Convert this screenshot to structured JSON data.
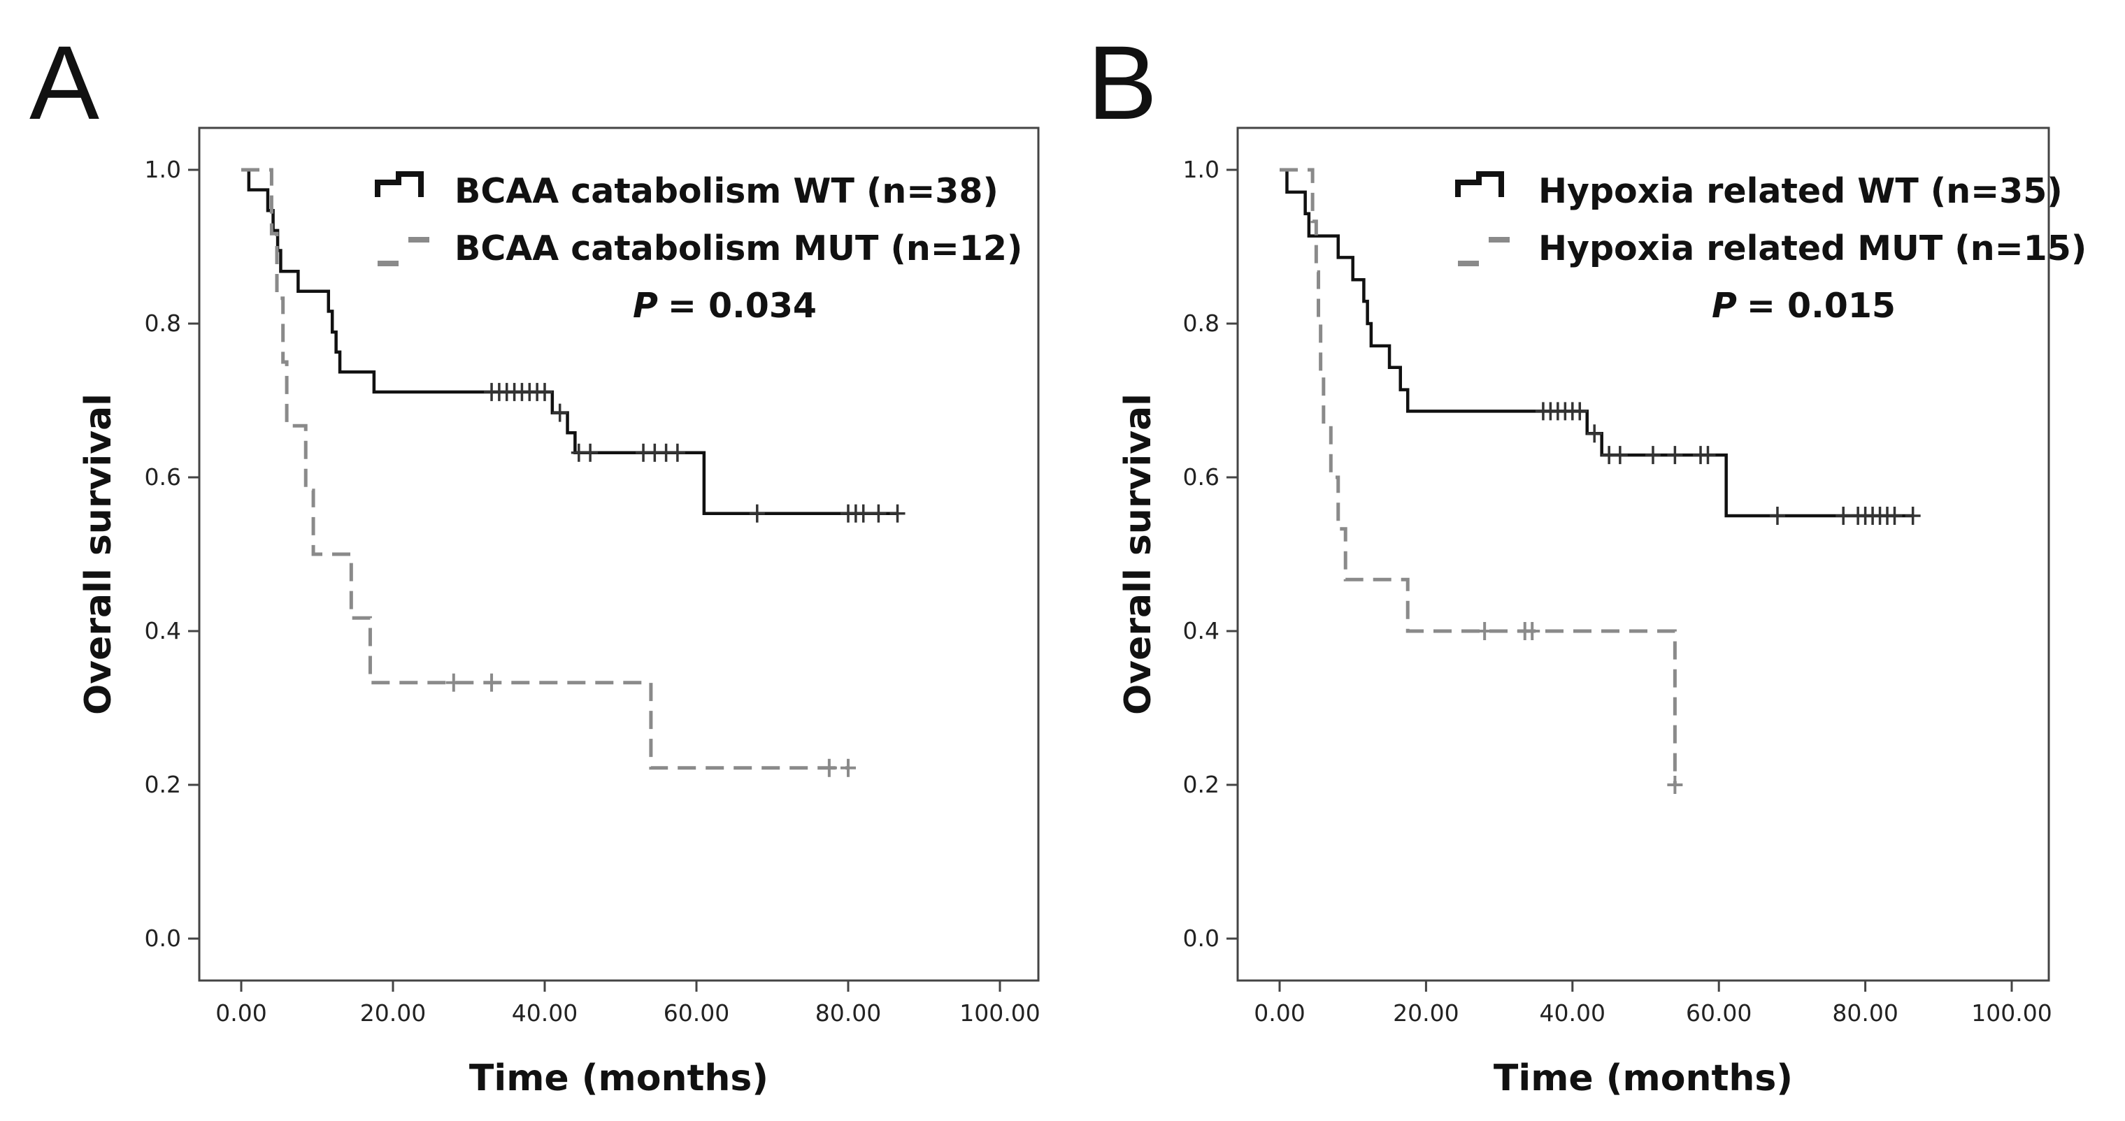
{
  "chart_data": [
    {
      "type": "line",
      "subtype": "kaplan-meier",
      "panel_label": "A",
      "xlabel": "Time (months)",
      "ylabel": "Overall survival",
      "xlim": [
        0,
        100
      ],
      "ylim": [
        0,
        1.0
      ],
      "xticks": [
        "0.00",
        "20.00",
        "40.00",
        "60.00",
        "80.00",
        "100.00"
      ],
      "yticks": [
        "0.0",
        "0.2",
        "0.4",
        "0.6",
        "0.8",
        "1.0"
      ],
      "legend_position": "top-right",
      "p_label": "P",
      "p_value": "= 0.034",
      "series": [
        {
          "name": "BCAA catabolism WT (n=38)",
          "style": "solid",
          "color": "#111111",
          "steps": [
            [
              0,
              1.0
            ],
            [
              1,
              0.974
            ],
            [
              3.5,
              0.947
            ],
            [
              4.2,
              0.921
            ],
            [
              4.8,
              0.895
            ],
            [
              5.2,
              0.868
            ],
            [
              7.5,
              0.842
            ],
            [
              11.5,
              0.816
            ],
            [
              12,
              0.789
            ],
            [
              12.5,
              0.763
            ],
            [
              13,
              0.737
            ],
            [
              17.5,
              0.711
            ],
            [
              41,
              0.684
            ],
            [
              43,
              0.658
            ],
            [
              44,
              0.632
            ],
            [
              61,
              0.553
            ]
          ],
          "censored": [
            [
              33,
              0.711
            ],
            [
              34,
              0.711
            ],
            [
              35,
              0.711
            ],
            [
              36,
              0.711
            ],
            [
              37,
              0.711
            ],
            [
              38,
              0.711
            ],
            [
              39,
              0.711
            ],
            [
              40,
              0.711
            ],
            [
              42,
              0.684
            ],
            [
              44.5,
              0.632
            ],
            [
              46,
              0.632
            ],
            [
              53,
              0.632
            ],
            [
              54.5,
              0.632
            ],
            [
              56,
              0.632
            ],
            [
              57.5,
              0.632
            ],
            [
              68,
              0.553
            ],
            [
              80,
              0.553
            ],
            [
              81,
              0.553
            ],
            [
              82,
              0.553
            ],
            [
              84,
              0.553
            ],
            [
              86.5,
              0.553
            ]
          ]
        },
        {
          "name": "BCAA catabolism MUT (n=12)",
          "style": "dashed",
          "color": "#8a8a8a",
          "steps": [
            [
              0,
              1.0
            ],
            [
              4,
              0.917
            ],
            [
              4.7,
              0.833
            ],
            [
              5.5,
              0.75
            ],
            [
              6,
              0.667
            ],
            [
              8.5,
              0.583
            ],
            [
              9.5,
              0.5
            ],
            [
              14.5,
              0.417
            ],
            [
              17,
              0.333
            ],
            [
              54,
              0.222
            ]
          ],
          "censored": [
            [
              28,
              0.333
            ],
            [
              33,
              0.333
            ],
            [
              77.5,
              0.222
            ],
            [
              80,
              0.222
            ]
          ]
        }
      ]
    },
    {
      "type": "line",
      "subtype": "kaplan-meier",
      "panel_label": "B",
      "xlabel": "Time (months)",
      "ylabel": "Overall survival",
      "xlim": [
        0,
        100
      ],
      "ylim": [
        0,
        1.0
      ],
      "xticks": [
        "0.00",
        "20.00",
        "40.00",
        "60.00",
        "80.00",
        "100.00"
      ],
      "yticks": [
        "0.0",
        "0.2",
        "0.4",
        "0.6",
        "0.8",
        "1.0"
      ],
      "legend_position": "top-right",
      "p_label": "P",
      "p_value": "= 0.015",
      "series": [
        {
          "name": "Hypoxia related WT (n=35)",
          "style": "solid",
          "color": "#111111",
          "steps": [
            [
              0,
              1.0
            ],
            [
              1,
              0.971
            ],
            [
              3.5,
              0.943
            ],
            [
              4,
              0.914
            ],
            [
              8,
              0.886
            ],
            [
              10,
              0.857
            ],
            [
              11.5,
              0.829
            ],
            [
              12,
              0.8
            ],
            [
              12.5,
              0.771
            ],
            [
              15,
              0.743
            ],
            [
              16.5,
              0.714
            ],
            [
              17.5,
              0.686
            ],
            [
              42,
              0.657
            ],
            [
              44,
              0.629
            ],
            [
              61,
              0.55
            ]
          ],
          "censored": [
            [
              36,
              0.686
            ],
            [
              37,
              0.686
            ],
            [
              38,
              0.686
            ],
            [
              39,
              0.686
            ],
            [
              40,
              0.686
            ],
            [
              41,
              0.686
            ],
            [
              43,
              0.657
            ],
            [
              45,
              0.629
            ],
            [
              46.5,
              0.629
            ],
            [
              51,
              0.629
            ],
            [
              54,
              0.629
            ],
            [
              57.5,
              0.629
            ],
            [
              58.5,
              0.629
            ],
            [
              68,
              0.55
            ],
            [
              77,
              0.55
            ],
            [
              79,
              0.55
            ],
            [
              80,
              0.55
            ],
            [
              81,
              0.55
            ],
            [
              82,
              0.55
            ],
            [
              83,
              0.55
            ],
            [
              84,
              0.55
            ],
            [
              86.5,
              0.55
            ]
          ]
        },
        {
          "name": "Hypoxia related MUT (n=15)",
          "style": "dashed",
          "color": "#8a8a8a",
          "steps": [
            [
              0,
              1.0
            ],
            [
              4.5,
              0.933
            ],
            [
              5,
              0.867
            ],
            [
              5.3,
              0.8
            ],
            [
              5.6,
              0.733
            ],
            [
              6,
              0.667
            ],
            [
              7,
              0.6
            ],
            [
              8,
              0.533
            ],
            [
              9,
              0.467
            ],
            [
              17.5,
              0.4
            ],
            [
              54,
              0.2
            ]
          ],
          "censored": [
            [
              28,
              0.4
            ],
            [
              33.5,
              0.4
            ],
            [
              34.5,
              0.4
            ],
            [
              54,
              0.2
            ]
          ]
        }
      ]
    }
  ]
}
